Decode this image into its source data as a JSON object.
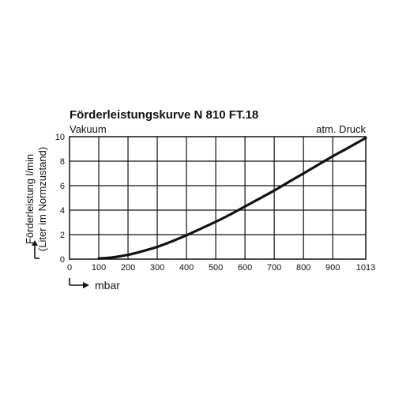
{
  "chart_data": {
    "type": "line",
    "title": "Förderleistungskurve N 810 FT.18",
    "ylabel": "Förderleistung l/min",
    "ylabel_sub": "(Liter im Normzustand)",
    "xlabel": "mbar",
    "left_label": "Vakuum",
    "right_label": "atm. Druck",
    "xlim": [
      0,
      1013
    ],
    "ylim": [
      0,
      10
    ],
    "x_ticks": [
      "0",
      "100",
      "200",
      "300",
      "400",
      "500",
      "600",
      "700",
      "800",
      "900",
      "1013"
    ],
    "y_ticks": [
      "0",
      "2",
      "4",
      "6",
      "8",
      "10"
    ],
    "grid": true,
    "series": [
      {
        "x": [
          100,
          150,
          200,
          250,
          300,
          350,
          400,
          450,
          500,
          550,
          600,
          650,
          700,
          750,
          800,
          850,
          900,
          950,
          1013
        ],
        "y": [
          0.05,
          0.15,
          0.35,
          0.65,
          1.0,
          1.45,
          1.95,
          2.5,
          3.05,
          3.65,
          4.3,
          4.95,
          5.6,
          6.3,
          7.0,
          7.7,
          8.4,
          9.05,
          9.9
        ]
      }
    ]
  }
}
